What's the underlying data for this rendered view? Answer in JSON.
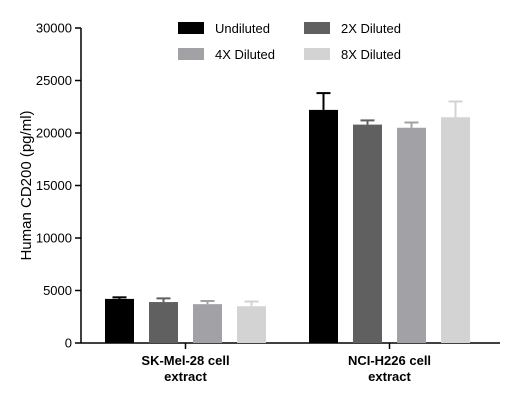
{
  "chart_data": {
    "type": "bar",
    "title": "",
    "xlabel": "",
    "ylabel": "Human CD200 (pg/ml)",
    "ylim": [
      0,
      30000
    ],
    "yticks": [
      0,
      5000,
      10000,
      15000,
      20000,
      25000,
      30000
    ],
    "ytick_labels": [
      "0",
      "5000",
      "10000",
      "15000",
      "20000",
      "25000",
      "30000"
    ],
    "categories": [
      [
        "SK-Mel-28 cell",
        "extract"
      ],
      [
        "NCI-H226 cell",
        "extract"
      ]
    ],
    "series": [
      {
        "name": "Undiluted",
        "color": "#000000",
        "values": [
          4200,
          22200
        ],
        "errors": [
          150,
          1600
        ]
      },
      {
        "name": "2X Diluted",
        "color": "#606060",
        "values": [
          3900,
          20800
        ],
        "errors": [
          350,
          400
        ]
      },
      {
        "name": "4X Diluted",
        "color": "#a2a2a6",
        "values": [
          3700,
          20500
        ],
        "errors": [
          300,
          500
        ]
      },
      {
        "name": "8X Diluted",
        "color": "#d3d3d3",
        "values": [
          3500,
          21500
        ],
        "errors": [
          450,
          1500
        ]
      }
    ],
    "grid": false,
    "legend_position": "top",
    "legend_columns": 2
  }
}
